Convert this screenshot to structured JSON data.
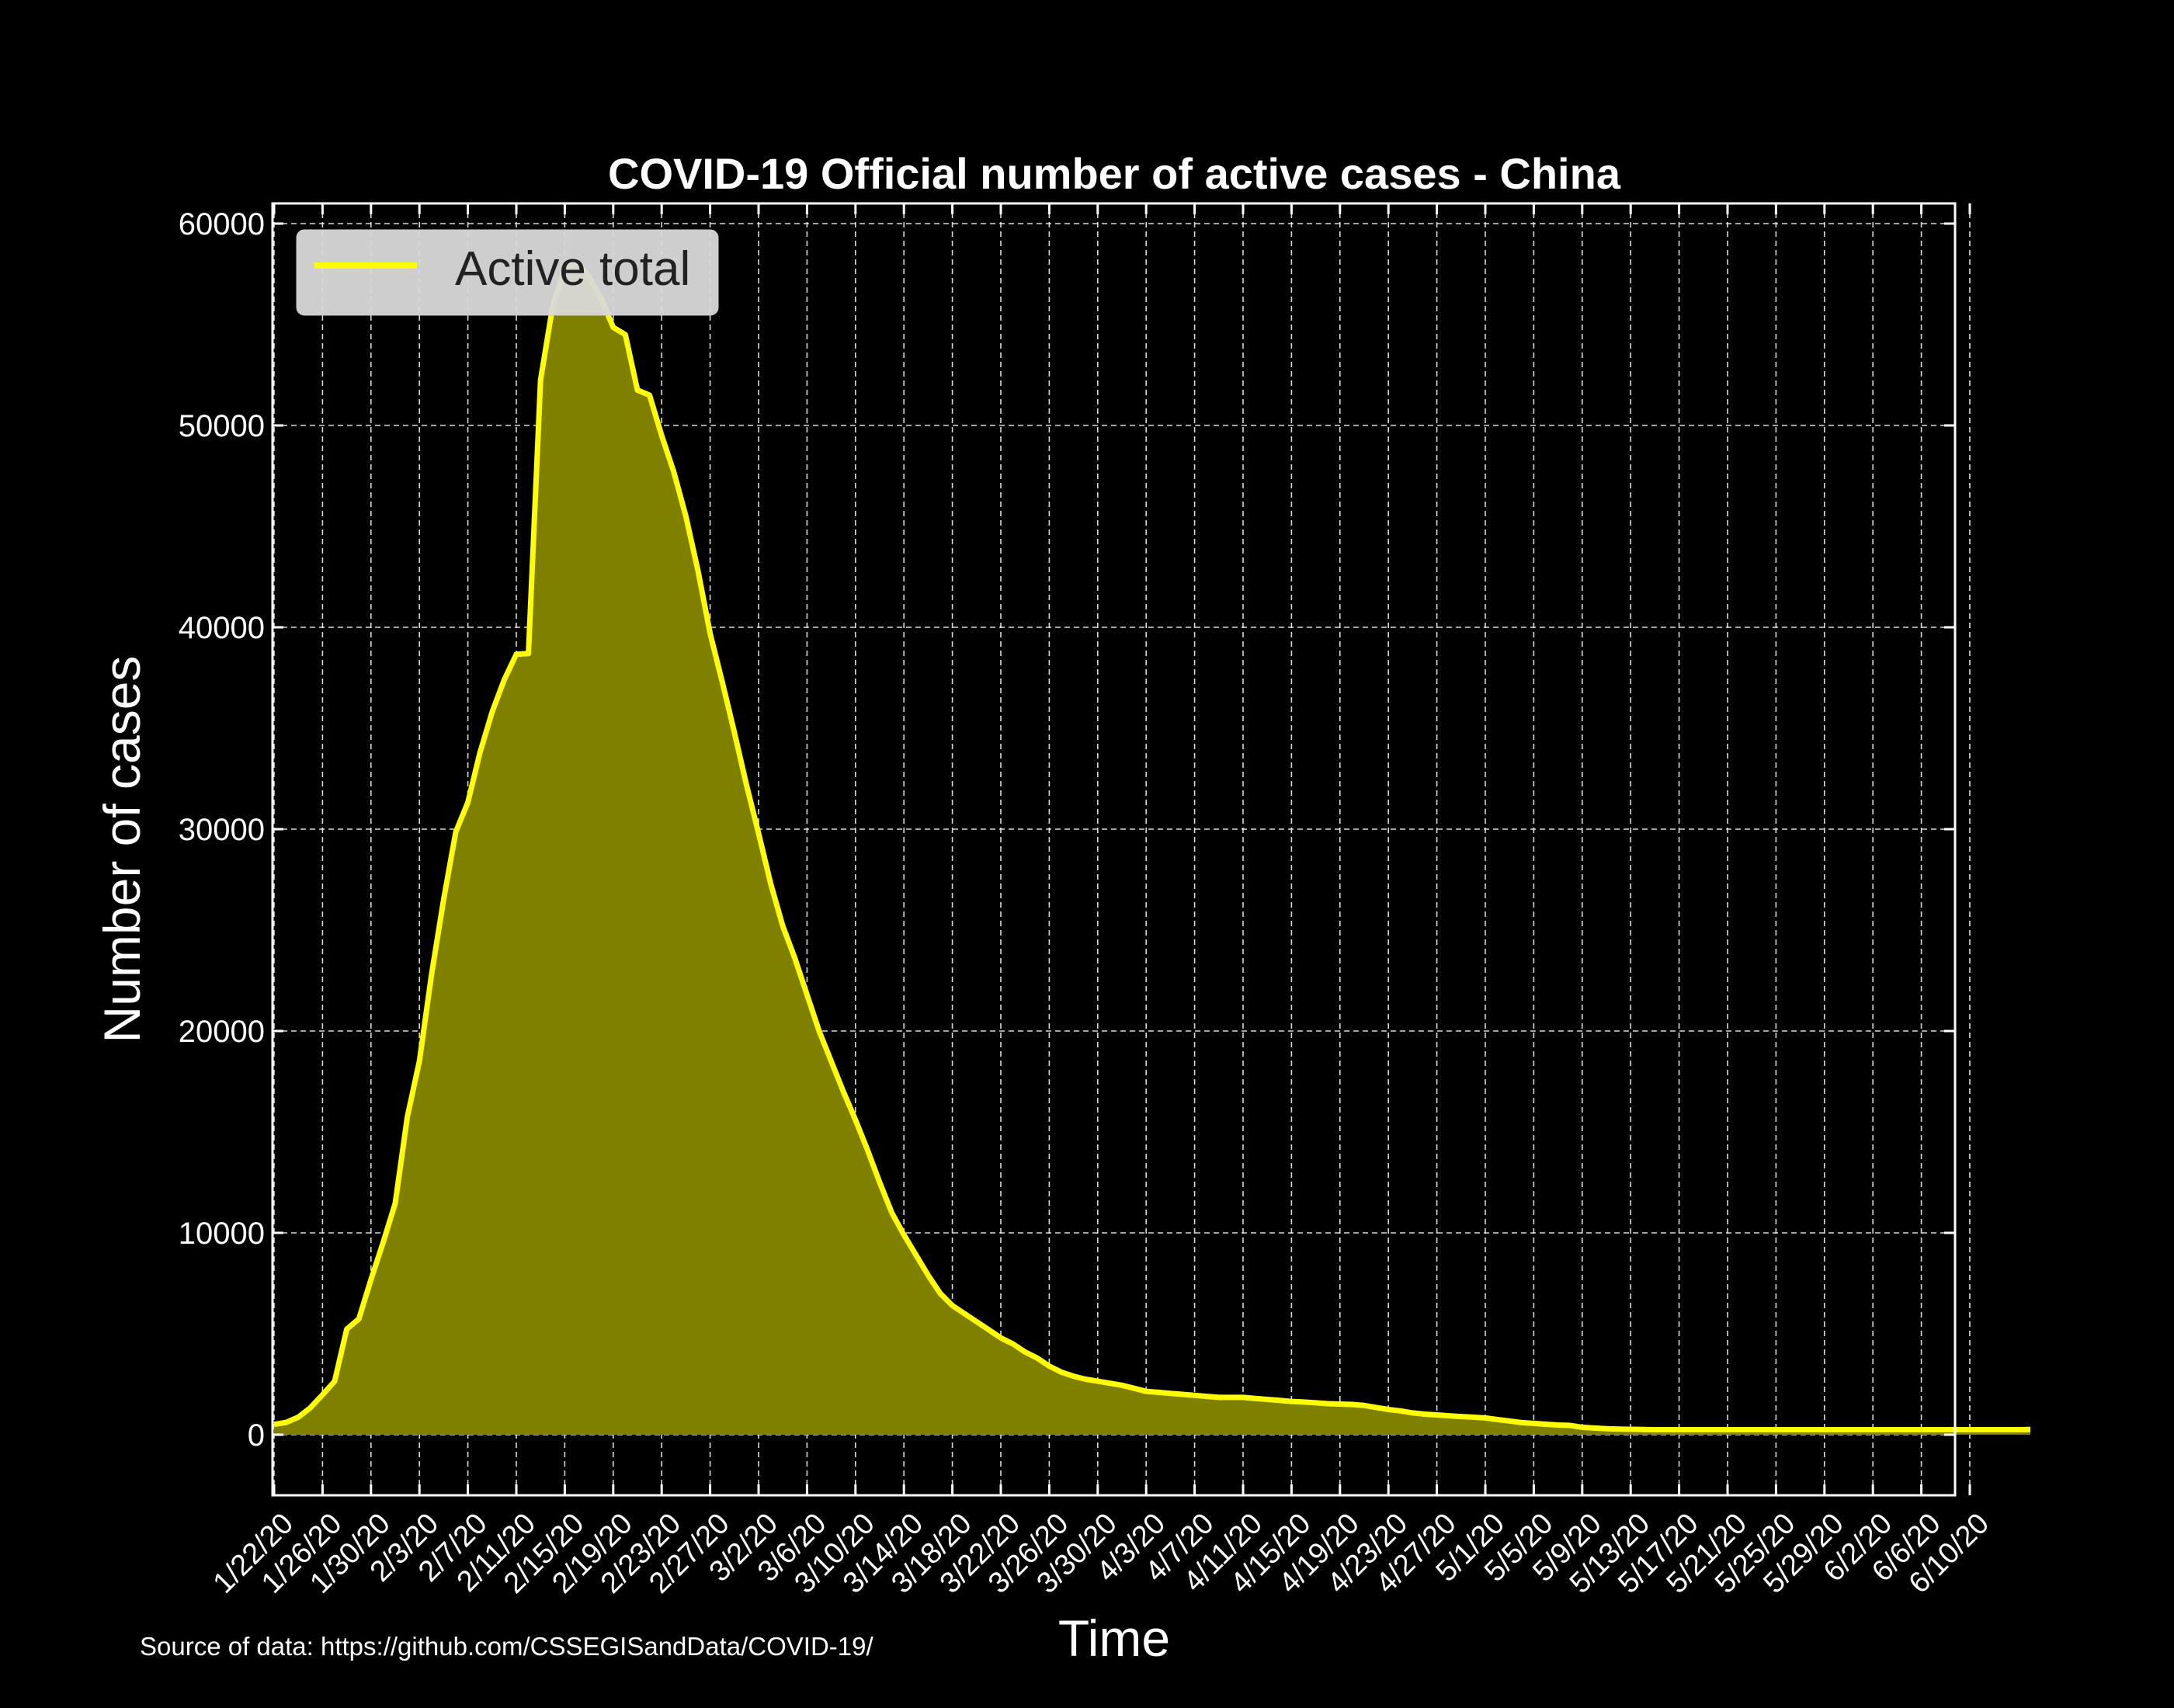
{
  "chart_data": {
    "type": "area",
    "title": "COVID-19 Official number of active cases - China",
    "xlabel": "Time",
    "ylabel": "Number of cases",
    "source": "Source of data: https://github.com/CSSEGISandData/COVID-19/",
    "ylim": [
      -3000,
      61000
    ],
    "y_ticks": [
      0,
      10000,
      20000,
      30000,
      40000,
      50000,
      60000
    ],
    "grid": true,
    "legend_position": "top-left",
    "colors": {
      "line": "#ffff00",
      "fill": "#808000",
      "background": "#000000",
      "grid": "#ffffff"
    },
    "x_tick_labels": [
      "1/22/20",
      "1/26/20",
      "1/30/20",
      "2/3/20",
      "2/7/20",
      "2/11/20",
      "2/15/20",
      "2/19/20",
      "2/23/20",
      "2/27/20",
      "3/2/20",
      "3/6/20",
      "3/10/20",
      "3/14/20",
      "3/18/20",
      "3/22/20",
      "3/26/20",
      "3/30/20",
      "4/3/20",
      "4/7/20",
      "4/11/20",
      "4/15/20",
      "4/19/20",
      "4/23/20",
      "4/27/20",
      "5/1/20",
      "5/5/20",
      "5/9/20",
      "5/13/20",
      "5/17/20",
      "5/21/20",
      "5/25/20",
      "5/29/20",
      "6/2/20",
      "6/6/20",
      "6/10/20"
    ],
    "series": [
      {
        "name": "Active total",
        "start_date": "1/22/20",
        "values": [
          510,
          610,
          870,
          1340,
          1980,
          2650,
          5230,
          5740,
          7690,
          9520,
          11460,
          15740,
          18510,
          22800,
          26520,
          29860,
          31330,
          33800,
          35800,
          37400,
          38660,
          38700,
          52250,
          55900,
          57800,
          58120,
          57350,
          56300,
          54860,
          54500,
          51750,
          51500,
          49500,
          47700,
          45500,
          42800,
          39700,
          37300,
          34800,
          32200,
          29800,
          27300,
          25200,
          23600,
          21800,
          20000,
          18500,
          17000,
          15600,
          14100,
          12500,
          11000,
          9900,
          8900,
          7900,
          7000,
          6400,
          6000,
          5600,
          5200,
          4800,
          4500,
          4100,
          3800,
          3400,
          3100,
          2900,
          2750,
          2650,
          2550,
          2450,
          2300,
          2150,
          2100,
          2050,
          2000,
          1950,
          1900,
          1850,
          1850,
          1850,
          1800,
          1750,
          1700,
          1650,
          1620,
          1580,
          1540,
          1520,
          1500,
          1450,
          1350,
          1250,
          1180,
          1080,
          1020,
          980,
          940,
          900,
          870,
          830,
          750,
          680,
          600,
          560,
          520,
          480,
          460,
          370,
          330,
          300,
          280,
          270,
          260,
          250,
          250,
          250,
          250,
          250,
          250,
          250,
          250,
          250,
          250,
          250,
          250,
          250,
          250,
          250,
          250,
          250,
          250,
          250,
          250,
          250,
          250,
          250,
          250,
          250,
          250,
          250,
          250,
          250,
          250,
          250,
          260
        ]
      }
    ]
  }
}
